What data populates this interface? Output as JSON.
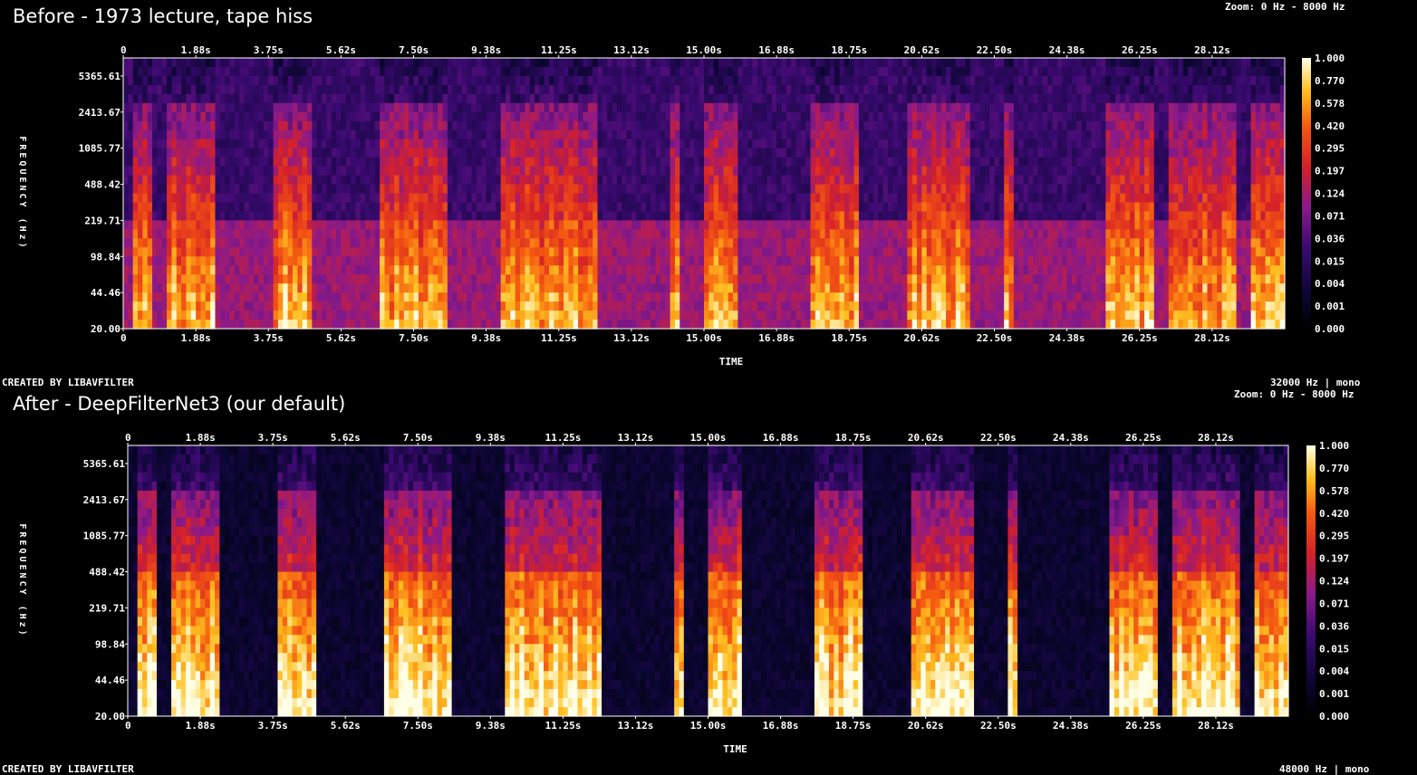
{
  "panels": [
    {
      "title": "Before - 1973 lecture, tape hiss",
      "zoom_label": "Zoom: 0 Hz - 8000 Hz",
      "sample_info": "32000 Hz | mono",
      "created_by": "CREATED BY LIBAVFILTER",
      "denoised": false
    },
    {
      "title": "After - DeepFilterNet3 (our default)",
      "zoom_label": "Zoom: 0 Hz - 8000 Hz",
      "sample_info": "48000 Hz | mono",
      "created_by": "CREATED BY LIBAVFILTER",
      "denoised": true
    }
  ],
  "colors": {
    "background": "#000000",
    "axis": "#ffffff"
  },
  "chart_data": [
    {
      "type": "heatmap",
      "title": "Before - 1973 lecture, tape hiss",
      "xlabel": "TIME",
      "ylabel": "FREQUENCY (Hz)",
      "x_ticks": [
        "0",
        "1.88s",
        "3.75s",
        "5.62s",
        "7.50s",
        "9.38s",
        "11.25s",
        "13.12s",
        "15.00s",
        "16.88s",
        "18.75s",
        "20.62s",
        "22.50s",
        "24.38s",
        "26.25s",
        "28.12s"
      ],
      "y_ticks": [
        "5365.61",
        "2413.67",
        "1085.77",
        "488.42",
        "219.71",
        "98.84",
        "44.46",
        "20.00"
      ],
      "colorbar_ticks": [
        "1.000",
        "0.770",
        "0.578",
        "0.420",
        "0.295",
        "0.197",
        "0.124",
        "0.071",
        "0.036",
        "0.015",
        "0.004",
        "0.001",
        "0.000"
      ],
      "xlim": [
        0,
        30
      ],
      "ylim_hz": [
        20,
        8000
      ],
      "y_scale": "log",
      "colormap": "intensity (black-purple-red-yellow-white)",
      "speech_segments_s": [
        [
          0.2,
          0.7
        ],
        [
          1.1,
          2.4
        ],
        [
          3.9,
          4.9
        ],
        [
          6.6,
          8.4
        ],
        [
          9.8,
          12.3
        ],
        [
          14.1,
          14.4
        ],
        [
          15.0,
          15.9
        ],
        [
          17.8,
          19.0
        ],
        [
          20.2,
          21.9
        ],
        [
          22.7,
          23.0
        ],
        [
          25.4,
          26.6
        ],
        [
          27.0,
          28.7
        ],
        [
          29.1,
          30.0
        ]
      ]
    },
    {
      "type": "heatmap",
      "title": "After - DeepFilterNet3 (our default)",
      "xlabel": "TIME",
      "ylabel": "FREQUENCY (Hz)",
      "x_ticks": [
        "0",
        "1.88s",
        "3.75s",
        "5.62s",
        "7.50s",
        "9.38s",
        "11.25s",
        "13.12s",
        "15.00s",
        "16.88s",
        "18.75s",
        "20.62s",
        "22.50s",
        "24.38s",
        "26.25s",
        "28.12s"
      ],
      "y_ticks": [
        "5365.61",
        "2413.67",
        "1085.77",
        "488.42",
        "219.71",
        "98.84",
        "44.46",
        "20.00"
      ],
      "colorbar_ticks": [
        "1.000",
        "0.770",
        "0.578",
        "0.420",
        "0.295",
        "0.197",
        "0.124",
        "0.071",
        "0.036",
        "0.015",
        "0.004",
        "0.001",
        "0.000"
      ],
      "xlim": [
        0,
        30
      ],
      "ylim_hz": [
        20,
        8000
      ],
      "y_scale": "log",
      "colormap": "intensity (black-purple-red-yellow-white)",
      "speech_segments_s": [
        [
          0.2,
          0.7
        ],
        [
          1.1,
          2.4
        ],
        [
          3.9,
          4.9
        ],
        [
          6.6,
          8.4
        ],
        [
          9.8,
          12.3
        ],
        [
          14.1,
          14.4
        ],
        [
          15.0,
          15.9
        ],
        [
          17.8,
          19.0
        ],
        [
          20.2,
          21.9
        ],
        [
          22.7,
          23.0
        ],
        [
          25.4,
          26.6
        ],
        [
          27.0,
          28.7
        ],
        [
          29.1,
          30.0
        ]
      ]
    }
  ]
}
